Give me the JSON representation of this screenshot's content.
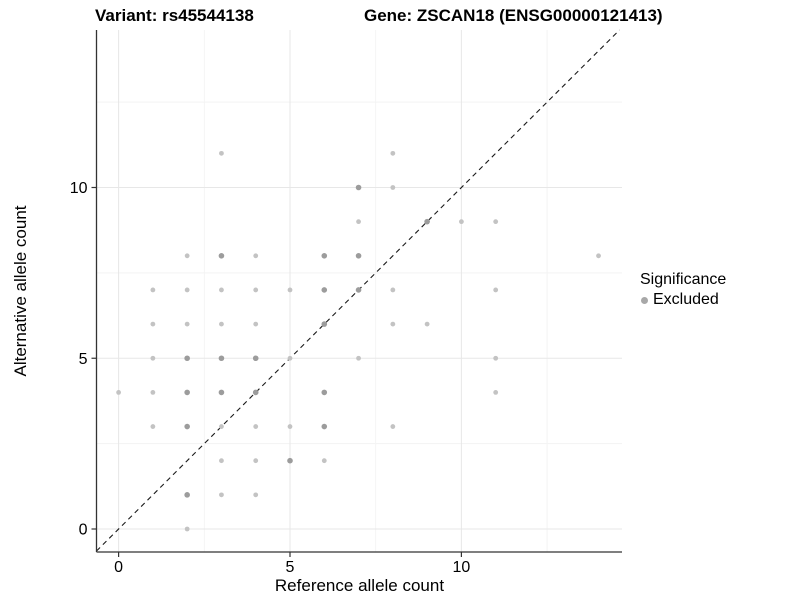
{
  "title": {
    "variant": "Variant: rs45544138",
    "gene": "Gene: ZSCAN18 (ENSG00000121413)"
  },
  "axis": {
    "x_label": "Reference allele count",
    "y_label": "Alternative allele count"
  },
  "legend": {
    "title": "Significance",
    "items": [
      {
        "label": "Excluded",
        "swatch_color": "#a8a8a8"
      }
    ]
  },
  "colors": {
    "background": "#ffffff",
    "text": "#000000",
    "axis_line": "#333333",
    "grid_major": "#e7e7e7",
    "grid_minor": "#f3f3f3",
    "diagonal": "#1a1a1a",
    "point_light": "#c3c3c3",
    "point_dark": "#9c9c9c"
  },
  "chart_data": {
    "type": "scatter",
    "title": "Variant: rs45544138   Gene: ZSCAN18 (ENSG00000121413)",
    "xlabel": "Reference allele count",
    "ylabel": "Alternative allele count",
    "xlim": [
      -0.7,
      14.7
    ],
    "ylim": [
      -0.7,
      14.6
    ],
    "x_ticks": [
      0,
      5,
      10
    ],
    "y_ticks": [
      0,
      5,
      10
    ],
    "x_minor_ticks": [
      2.5,
      7.5,
      12.5
    ],
    "y_minor_ticks": [
      2.5,
      7.5,
      12.5
    ],
    "grid": "on",
    "legend_position": "right",
    "reference_line": {
      "style": "dashed",
      "slope": 1,
      "intercept": 0,
      "label": "y = x identity line"
    },
    "point_format": [
      "x",
      "y",
      "shade"
    ],
    "series": [
      {
        "name": "Excluded",
        "marker": "circle",
        "points": [
          [
            0,
            4,
            "light"
          ],
          [
            1,
            3,
            "light"
          ],
          [
            1,
            4,
            "light"
          ],
          [
            1,
            5,
            "light"
          ],
          [
            1,
            6,
            "light"
          ],
          [
            1,
            7,
            "light"
          ],
          [
            2,
            0,
            "light"
          ],
          [
            2,
            1,
            "dark"
          ],
          [
            2,
            3,
            "dark"
          ],
          [
            2,
            4,
            "dark"
          ],
          [
            2,
            5,
            "dark"
          ],
          [
            2,
            6,
            "light"
          ],
          [
            2,
            7,
            "light"
          ],
          [
            2,
            8,
            "light"
          ],
          [
            3,
            1,
            "light"
          ],
          [
            3,
            2,
            "light"
          ],
          [
            3,
            3,
            "light"
          ],
          [
            3,
            4,
            "dark"
          ],
          [
            3,
            5,
            "dark"
          ],
          [
            3,
            6,
            "light"
          ],
          [
            3,
            7,
            "light"
          ],
          [
            3,
            8,
            "dark"
          ],
          [
            3,
            11,
            "light"
          ],
          [
            4,
            1,
            "light"
          ],
          [
            4,
            2,
            "light"
          ],
          [
            4,
            3,
            "light"
          ],
          [
            4,
            4,
            "dark"
          ],
          [
            4,
            5,
            "dark"
          ],
          [
            4,
            6,
            "light"
          ],
          [
            4,
            7,
            "light"
          ],
          [
            4,
            8,
            "light"
          ],
          [
            5,
            2,
            "dark"
          ],
          [
            5,
            3,
            "light"
          ],
          [
            5,
            5,
            "light"
          ],
          [
            5,
            7,
            "light"
          ],
          [
            6,
            2,
            "light"
          ],
          [
            6,
            3,
            "dark"
          ],
          [
            6,
            4,
            "dark"
          ],
          [
            6,
            6,
            "dark"
          ],
          [
            6,
            7,
            "dark"
          ],
          [
            6,
            8,
            "dark"
          ],
          [
            7,
            5,
            "light"
          ],
          [
            7,
            7,
            "dark"
          ],
          [
            7,
            8,
            "dark"
          ],
          [
            7,
            9,
            "light"
          ],
          [
            7,
            10,
            "dark"
          ],
          [
            8,
            3,
            "light"
          ],
          [
            8,
            6,
            "light"
          ],
          [
            8,
            7,
            "light"
          ],
          [
            8,
            10,
            "light"
          ],
          [
            8,
            11,
            "light"
          ],
          [
            9,
            6,
            "light"
          ],
          [
            9,
            9,
            "dark"
          ],
          [
            10,
            9,
            "light"
          ],
          [
            11,
            4,
            "light"
          ],
          [
            11,
            5,
            "light"
          ],
          [
            11,
            7,
            "light"
          ],
          [
            11,
            9,
            "light"
          ],
          [
            14,
            8,
            "light"
          ]
        ]
      }
    ]
  }
}
